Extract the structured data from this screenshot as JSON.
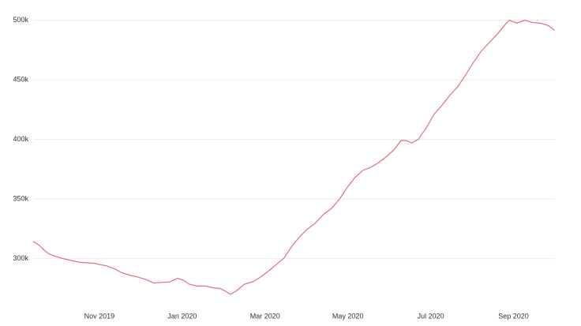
{
  "chart_data": {
    "type": "line",
    "x": [
      -1.6,
      -1.45,
      -1.33,
      -1.22,
      -1.07,
      -0.88,
      -0.69,
      -0.5,
      -0.3,
      -0.11,
      0,
      0.17,
      0.36,
      0.55,
      0.74,
      0.93,
      1.12,
      1.31,
      1.5,
      1.7,
      1.89,
      2.02,
      2.17,
      2.36,
      2.55,
      2.74,
      2.9,
      3.03,
      3.16,
      3.31,
      3.5,
      3.7,
      3.89,
      4.08,
      4.27,
      4.46,
      4.65,
      4.84,
      5.03,
      5.22,
      5.41,
      5.6,
      5.79,
      5.98,
      6.17,
      6.36,
      6.55,
      6.74,
      6.93,
      7.12,
      7.28,
      7.41,
      7.54,
      7.7,
      7.89,
      8.08,
      8.27,
      8.46,
      8.65,
      8.84,
      9.03,
      9.22,
      9.41,
      9.6,
      9.79,
      9.89,
      10.08,
      10.27,
      10.46,
      10.65,
      10.84,
      10.99
    ],
    "series": [
      {
        "color": "#e0707a",
        "values": [
          314500,
          311000,
          307000,
          304000,
          302000,
          300000,
          298500,
          297000,
          296500,
          296000,
          295000,
          294000,
          291500,
          288000,
          286000,
          284500,
          282500,
          279500,
          280000,
          280500,
          283500,
          282000,
          278500,
          277000,
          277000,
          275500,
          275000,
          273000,
          270000,
          273000,
          278500,
          280500,
          284500,
          289500,
          295000,
          300500,
          310500,
          318500,
          325000,
          330000,
          337000,
          342000,
          349500,
          359500,
          368000,
          374000,
          376500,
          380500,
          385500,
          391500,
          399000,
          399000,
          397000,
          400000,
          409500,
          421000,
          428500,
          437000,
          444000,
          454000,
          464500,
          474000,
          481000,
          488000,
          496000,
          500000,
          497500,
          500000,
          498000,
          497500,
          495500,
          491500
        ]
      }
    ],
    "xlim": [
      -1.6,
      11
    ],
    "xticks": [
      {
        "value": 0,
        "label": "Nov 2019"
      },
      {
        "value": 2,
        "label": "Jan 2020"
      },
      {
        "value": 4,
        "label": "Mar 2020"
      },
      {
        "value": 6,
        "label": "May 2020"
      },
      {
        "value": 8,
        "label": "Jul 2020"
      },
      {
        "value": 10,
        "label": "Sep 2020"
      }
    ],
    "ylim": [
      262000,
      507000
    ],
    "yticks": [
      {
        "value": 300000,
        "label": "300k"
      },
      {
        "value": 350000,
        "label": "350k"
      },
      {
        "value": 400000,
        "label": "400k"
      },
      {
        "value": 450000,
        "label": "450k"
      },
      {
        "value": 500000,
        "label": "500k"
      }
    ],
    "grid": true
  }
}
